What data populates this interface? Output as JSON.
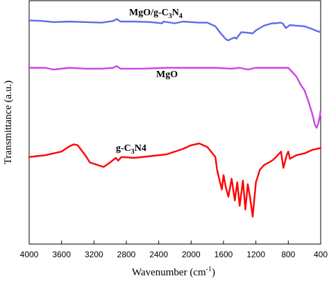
{
  "chart_data": {
    "type": "line",
    "title": "",
    "xlabel": "Wavenumber (cm",
    "xlabel_sup": "-1",
    "xlabel_tail": ")",
    "ylabel": "Transmittance (a.u.)",
    "xlim": [
      4000,
      400
    ],
    "x_reversed": true,
    "x_ticks": [
      "4000",
      "3600",
      "3200",
      "2800",
      "2400",
      "2000",
      "1600",
      "1200",
      "800",
      "400"
    ],
    "y_ticks_labeled": false,
    "grid": false,
    "legend": "none",
    "series_labels": {
      "mgo_gcn": {
        "a": "MgO/g-C",
        "b": "3",
        "c": "N",
        "d": "4"
      },
      "mgo": "MgO",
      "gcn": {
        "a": "g-C",
        "b": "3",
        "c": "N4"
      }
    },
    "series": [
      {
        "name": "MgO/g-C3N4",
        "color": "#5b6ee8",
        "points": [
          [
            4000,
            95
          ],
          [
            3850,
            94
          ],
          [
            3700,
            92
          ],
          [
            3500,
            93
          ],
          [
            3300,
            92
          ],
          [
            3100,
            91
          ],
          [
            2960,
            94
          ],
          [
            2920,
            97
          ],
          [
            2870,
            93
          ],
          [
            2700,
            93
          ],
          [
            2500,
            92
          ],
          [
            2360,
            90
          ],
          [
            2340,
            93
          ],
          [
            2200,
            90
          ],
          [
            2100,
            93
          ],
          [
            2000,
            92
          ],
          [
            1900,
            91
          ],
          [
            1800,
            91
          ],
          [
            1700,
            85
          ],
          [
            1640,
            74
          ],
          [
            1570,
            63
          ],
          [
            1540,
            61
          ],
          [
            1500,
            64
          ],
          [
            1460,
            66
          ],
          [
            1440,
            64
          ],
          [
            1410,
            70
          ],
          [
            1380,
            75
          ],
          [
            1300,
            74
          ],
          [
            1240,
            73
          ],
          [
            1200,
            78
          ],
          [
            1100,
            86
          ],
          [
            1000,
            90
          ],
          [
            950,
            90
          ],
          [
            900,
            91
          ],
          [
            870,
            90
          ],
          [
            830,
            82
          ],
          [
            810,
            84
          ],
          [
            780,
            87
          ],
          [
            700,
            86
          ],
          [
            600,
            85
          ],
          [
            500,
            80
          ],
          [
            450,
            77
          ],
          [
            400,
            75
          ]
        ]
      },
      {
        "name": "MgO",
        "color": "#cc44e6",
        "points": [
          [
            4000,
            94
          ],
          [
            3800,
            94
          ],
          [
            3700,
            92
          ],
          [
            3500,
            94
          ],
          [
            3300,
            93
          ],
          [
            3100,
            93
          ],
          [
            2960,
            94
          ],
          [
            2920,
            96
          ],
          [
            2870,
            93
          ],
          [
            2600,
            93
          ],
          [
            2300,
            94
          ],
          [
            2000,
            94
          ],
          [
            1700,
            94
          ],
          [
            1500,
            93
          ],
          [
            1400,
            94
          ],
          [
            1300,
            92
          ],
          [
            1200,
            94
          ],
          [
            900,
            94
          ],
          [
            800,
            94
          ],
          [
            700,
            84
          ],
          [
            650,
            75
          ],
          [
            600,
            68
          ],
          [
            550,
            55
          ],
          [
            500,
            40
          ],
          [
            470,
            28
          ],
          [
            450,
            25
          ],
          [
            430,
            30
          ],
          [
            410,
            38
          ],
          [
            400,
            45
          ]
        ]
      },
      {
        "name": "g-C3N4",
        "color": "#ff0000",
        "points": [
          [
            4000,
            84
          ],
          [
            3900,
            85
          ],
          [
            3800,
            86
          ],
          [
            3700,
            88
          ],
          [
            3600,
            90
          ],
          [
            3500,
            96
          ],
          [
            3450,
            98
          ],
          [
            3400,
            97
          ],
          [
            3300,
            85
          ],
          [
            3250,
            78
          ],
          [
            3150,
            75
          ],
          [
            3080,
            73
          ],
          [
            3000,
            78
          ],
          [
            2930,
            83
          ],
          [
            2900,
            80
          ],
          [
            2860,
            84
          ],
          [
            2700,
            83
          ],
          [
            2500,
            85
          ],
          [
            2300,
            87
          ],
          [
            2100,
            93
          ],
          [
            2000,
            97
          ],
          [
            1900,
            99
          ],
          [
            1800,
            95
          ],
          [
            1700,
            84
          ],
          [
            1680,
            70
          ],
          [
            1640,
            55
          ],
          [
            1620,
            48
          ],
          [
            1600,
            64
          ],
          [
            1570,
            50
          ],
          [
            1540,
            40
          ],
          [
            1500,
            60
          ],
          [
            1460,
            36
          ],
          [
            1430,
            56
          ],
          [
            1400,
            30
          ],
          [
            1360,
            58
          ],
          [
            1330,
            26
          ],
          [
            1300,
            54
          ],
          [
            1270,
            38
          ],
          [
            1240,
            18
          ],
          [
            1200,
            56
          ],
          [
            1150,
            70
          ],
          [
            1100,
            75
          ],
          [
            1000,
            80
          ],
          [
            950,
            84
          ],
          [
            890,
            90
          ],
          [
            860,
            72
          ],
          [
            820,
            86
          ],
          [
            800,
            90
          ],
          [
            780,
            82
          ],
          [
            700,
            86
          ],
          [
            600,
            88
          ],
          [
            500,
            92
          ],
          [
            400,
            94
          ]
        ]
      }
    ]
  }
}
